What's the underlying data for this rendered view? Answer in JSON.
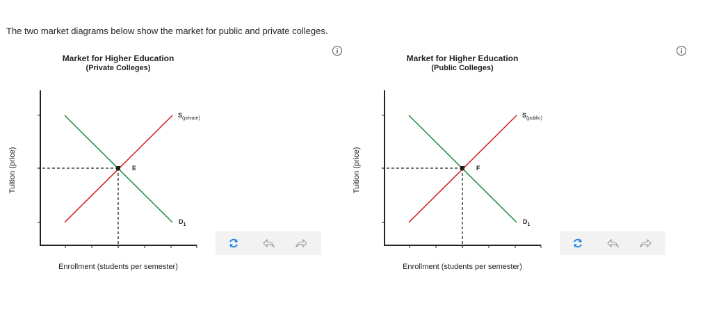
{
  "intro": "The two market diagrams below show the market for public and private colleges.",
  "panels": [
    {
      "title": "Market for Higher Education",
      "subtitle": "(Private Colleges)",
      "y_label": "Tuition (price)",
      "x_label": "Enrollment (students per semester)",
      "supply_label": {
        "main": "S",
        "sub": "(private)"
      },
      "demand_label": {
        "main": "D",
        "sub": "1"
      },
      "point_label": "E"
    },
    {
      "title": "Market for Higher Education",
      "subtitle": "(Public Colleges)",
      "y_label": "Tuition (price)",
      "x_label": "Enrollment (students per semester)",
      "supply_label": {
        "main": "S",
        "sub": "(public)"
      },
      "demand_label": {
        "main": "D",
        "sub": "1"
      },
      "point_label": "F"
    }
  ]
}
